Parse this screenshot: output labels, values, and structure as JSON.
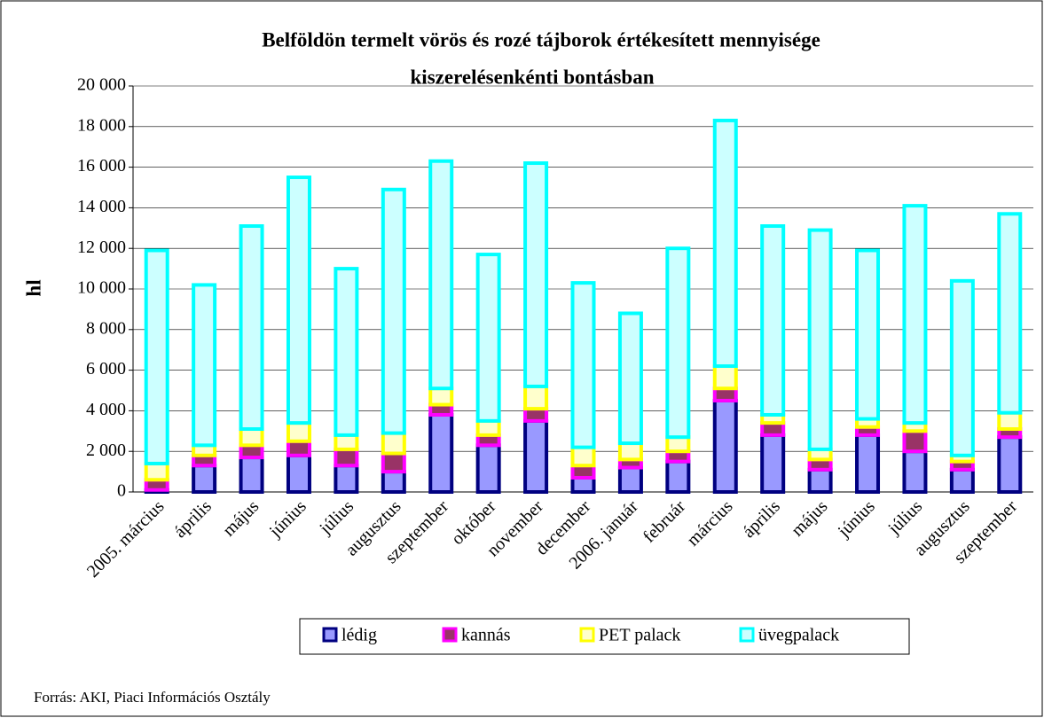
{
  "chart_data": {
    "type": "bar",
    "stacked": true,
    "title": [
      "Belföldön termelt vörös és rozé tájborok értékesített mennyisége",
      "kiszerelésenkénti bontásban"
    ],
    "ylabel": "hl",
    "source": "Forrás: AKI, Piaci Információs Osztály",
    "categories": [
      "2005. március",
      "április",
      "május",
      "június",
      "július",
      "augusztus",
      "szeptember",
      "október",
      "november",
      "december",
      "2006. január",
      "február",
      "március",
      "április",
      "május",
      "június",
      "július",
      "augusztus",
      "szeptember"
    ],
    "series": [
      {
        "name": "lédig",
        "color": "#000080",
        "fill": "#9999ff",
        "values": [
          100,
          1300,
          1700,
          1800,
          1300,
          1000,
          3800,
          2300,
          3500,
          700,
          1200,
          1500,
          4500,
          2800,
          1100,
          2800,
          2000,
          1100,
          2700
        ]
      },
      {
        "name": "kannás",
        "color": "#ff00ff",
        "fill": "#993366",
        "values": [
          500,
          500,
          600,
          700,
          800,
          900,
          500,
          500,
          600,
          600,
          400,
          500,
          600,
          600,
          500,
          400,
          1000,
          400,
          400
        ]
      },
      {
        "name": "PET palack",
        "color": "#ffff00",
        "fill": "#ffffcc",
        "values": [
          800,
          500,
          800,
          900,
          700,
          1000,
          800,
          700,
          1100,
          900,
          800,
          700,
          1100,
          400,
          500,
          400,
          400,
          300,
          800
        ]
      },
      {
        "name": "üvegpalack",
        "color": "#00ffff",
        "fill": "#ccffff",
        "values": [
          10500,
          7900,
          10000,
          12100,
          8200,
          12000,
          11200,
          8200,
          11000,
          8100,
          6400,
          9300,
          12100,
          9300,
          10800,
          8300,
          10700,
          8600,
          9800
        ]
      }
    ],
    "ylim": [
      0,
      20000
    ],
    "yticks": [
      0,
      {
        "value": 2000,
        "label": "2 000"
      },
      {
        "value": 4000,
        "label": "4 000"
      },
      {
        "value": 6000,
        "label": "6 000"
      },
      {
        "value": 8000,
        "label": "8 000"
      },
      {
        "value": 10000,
        "label": "10 000"
      },
      {
        "value": 12000,
        "label": "12 000"
      },
      {
        "value": 14000,
        "label": "14 000"
      },
      {
        "value": 16000,
        "label": "16 000"
      },
      {
        "value": 18000,
        "label": "18 000"
      },
      {
        "value": 20000,
        "label": "20 000"
      }
    ],
    "grid": true
  }
}
